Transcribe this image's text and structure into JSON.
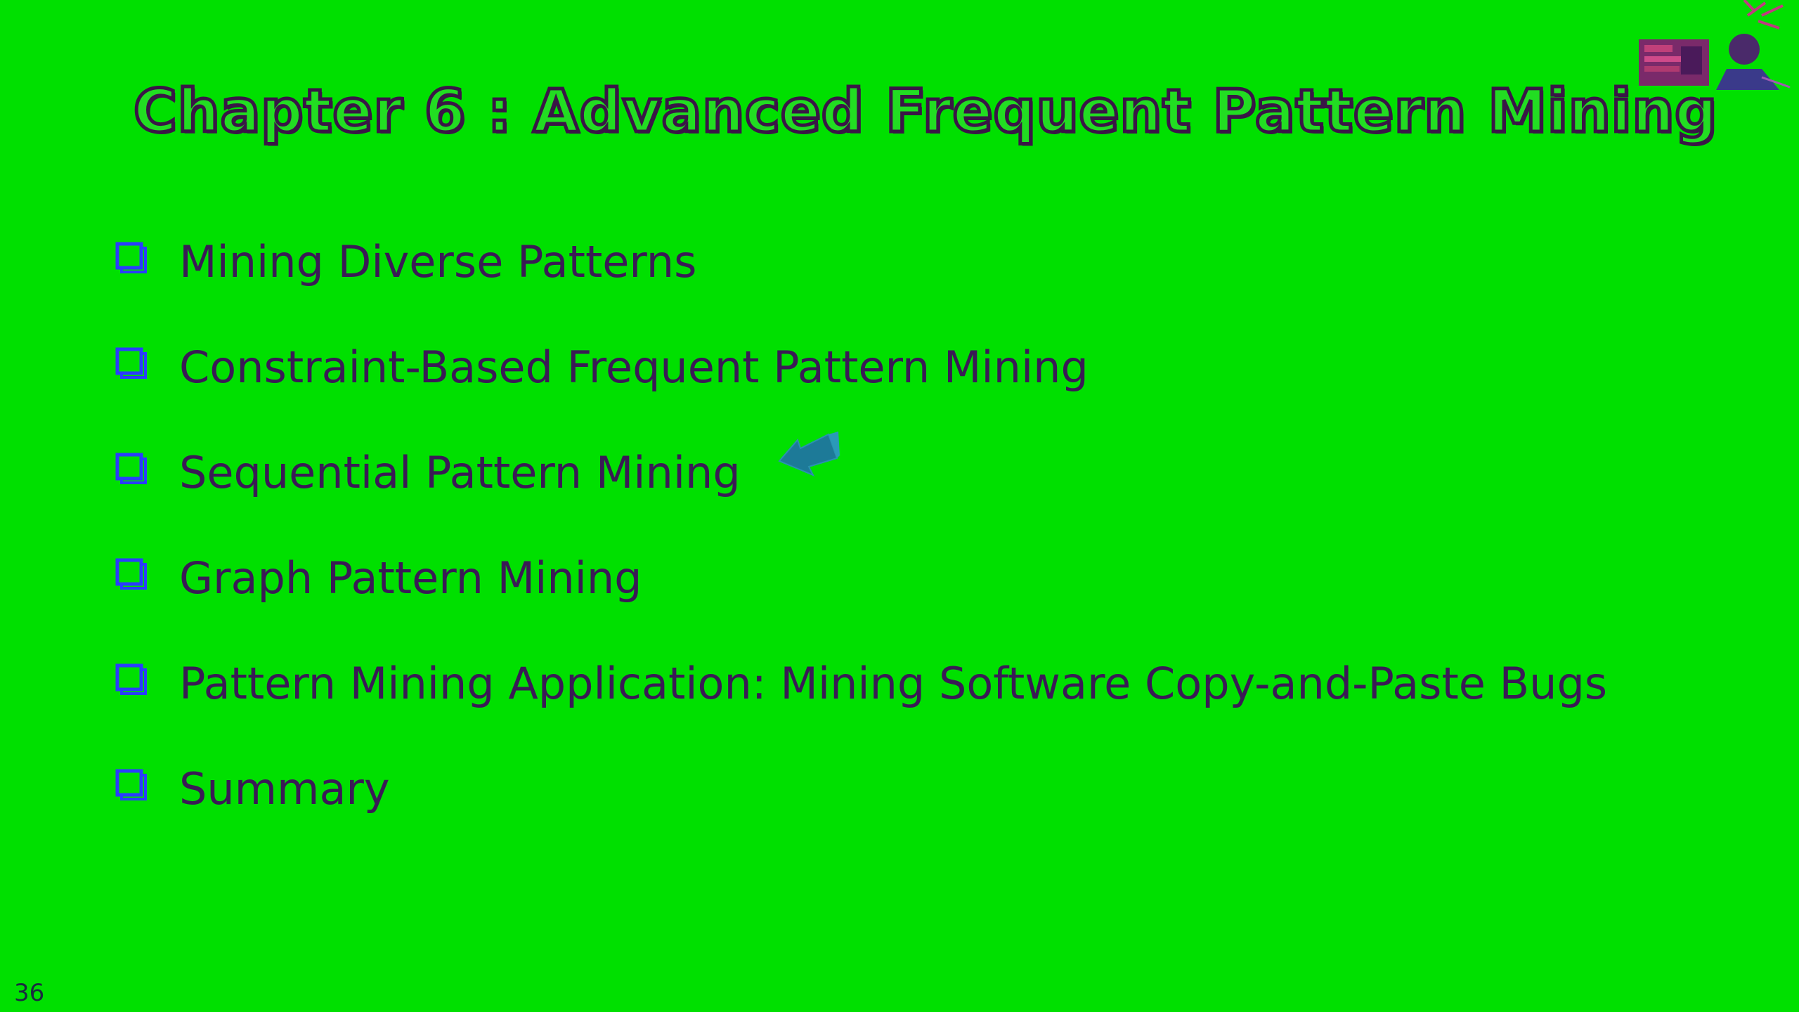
{
  "slide": {
    "title": "Chapter 6 : Advanced Frequent Pattern Mining",
    "bullets": [
      {
        "label": "Mining Diverse Patterns",
        "icon": "checkbox-icon"
      },
      {
        "label": "Constraint-Based Frequent Pattern Mining",
        "icon": "checkbox-icon"
      },
      {
        "label": "Sequential Pattern Mining",
        "icon": "checkbox-icon"
      },
      {
        "label": "Graph Pattern Mining",
        "icon": "checkbox-icon"
      },
      {
        "label": "Pattern Mining Application: Mining Software Copy-and-Paste Bugs",
        "icon": "checkbox-icon"
      },
      {
        "label": "Summary",
        "icon": "checkbox-icon"
      }
    ],
    "page_number": "36"
  },
  "colors": {
    "background": "#00e000",
    "text": "#3a1a55",
    "bullet_icon": "#2a3cff",
    "pointer": "#1d7a98"
  },
  "icons": {
    "pointer": "arrow-pointer-icon",
    "corner": "presenter-photo-icon"
  }
}
